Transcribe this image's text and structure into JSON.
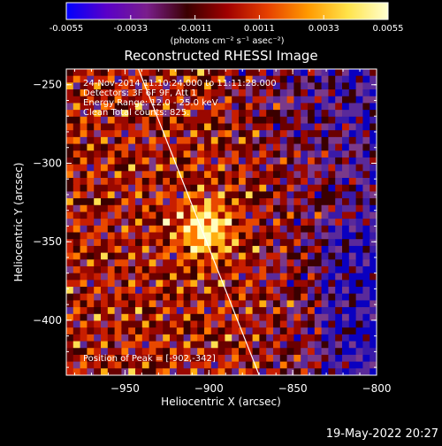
{
  "colorbar": {
    "ticks": [
      "-0.0055",
      "-0.0033",
      "-0.0011",
      "0.0011",
      "0.0033",
      "0.0055"
    ],
    "units": "(photons cm⁻² s⁻¹ asec⁻²)",
    "stops": [
      "#0000ff",
      "#5a00c8",
      "#7a1e8c",
      "#3a0000",
      "#a00000",
      "#e64000",
      "#ff9900",
      "#ffe34a",
      "#ffffd0"
    ]
  },
  "plot": {
    "title": "Reconstructed RHESSI Image",
    "xlabel": "Heliocentric X (arcsec)",
    "ylabel": "Heliocentric Y (arcsec)",
    "x_ticks": [
      "−950",
      "−900",
      "−850",
      "−800"
    ],
    "y_ticks": [
      "−250",
      "−300",
      "−350",
      "−400"
    ],
    "info_lines": [
      "24-Nov-2014 11:10:24.000 to 11:11:28.000",
      "Detectors: 3F 6F 9F, Att 1",
      "Energy Range: 12.0 - 25.0 keV",
      "Clean    Total counts: 825."
    ],
    "peak_label": "Position of Peak = [-902,-342]",
    "footer_date": "19-May-2022 20:27"
  },
  "chart_data": {
    "type": "heatmap",
    "title": "Reconstructed RHESSI Image",
    "xlabel": "Heliocentric X (arcsec)",
    "ylabel": "Heliocentric Y (arcsec)",
    "xlim": [
      -985,
      -800
    ],
    "ylim": [
      -435,
      -240
    ],
    "colorbar_range": [
      -0.0055,
      0.0055
    ],
    "peak": [
      -902,
      -342
    ],
    "limb_line": [
      [
        -942,
        -240
      ],
      [
        -870,
        -435
      ]
    ]
  }
}
